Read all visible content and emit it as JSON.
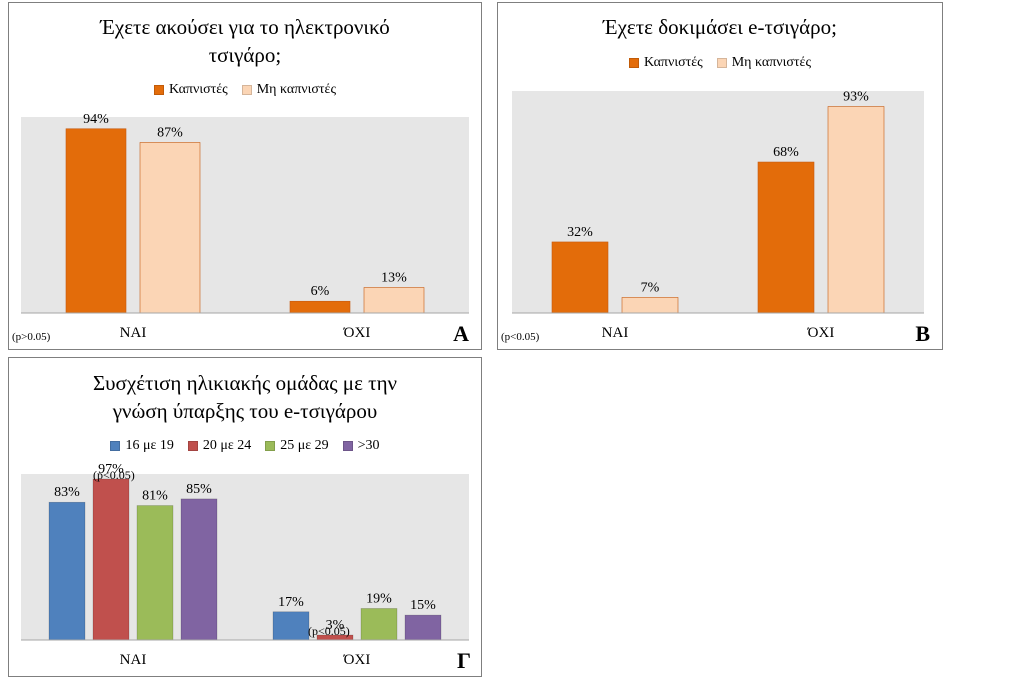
{
  "chart_data": [
    {
      "type": "bar",
      "id": "A",
      "title": "Έχετε ακούσει για το ηλεκτρονικό τσιγάρο;",
      "title_lines": [
        "Έχετε ακούσει για το ηλεκτρονικό",
        "τσιγάρο;"
      ],
      "categories": [
        "ΝΑΙ",
        "ΌΧΙ"
      ],
      "series": [
        {
          "name": "Καπνιστές",
          "color": "#e36c0a",
          "values": [
            94,
            6
          ],
          "labels": [
            "94%",
            "6%"
          ]
        },
        {
          "name": "Μη καπνιστές",
          "color": "#fbd5b5",
          "values": [
            87,
            13
          ],
          "labels": [
            "87%",
            "13%"
          ]
        }
      ],
      "ylim": [
        0,
        100
      ],
      "legend_position": "top",
      "plot_background": "#e6e6e6",
      "p_note": "(p>0.05)",
      "panel_label": "Α"
    },
    {
      "type": "bar",
      "id": "B",
      "title": "Έχετε δοκιμάσει e-τσιγάρο;",
      "title_lines": [
        "Έχετε δοκιμάσει e-τσιγάρο;"
      ],
      "categories": [
        "ΝΑΙ",
        "ΌΧΙ"
      ],
      "series": [
        {
          "name": "Καπνιστές",
          "color": "#e36c0a",
          "values": [
            32,
            68
          ],
          "labels": [
            "32%",
            "68%"
          ]
        },
        {
          "name": "Μη καπνιστές",
          "color": "#fbd5b5",
          "values": [
            7,
            93
          ],
          "labels": [
            "7%",
            "93%"
          ]
        }
      ],
      "ylim": [
        0,
        100
      ],
      "legend_position": "top",
      "plot_background": "#e6e6e6",
      "p_note": "(p<0.05)",
      "panel_label": "Β"
    },
    {
      "type": "bar",
      "id": "C",
      "title": "Συσχέτιση ηλικιακής ομάδας με την γνώση ύπαρξης του e-τσιγάρου",
      "title_lines": [
        "Συσχέτιση ηλικιακής ομάδας με την",
        "γνώση ύπαρξης του e-τσιγάρου"
      ],
      "categories": [
        "ΝΑΙ",
        "ΌΧΙ"
      ],
      "series": [
        {
          "name": "16 με 19",
          "color": "#4f81bd",
          "values": [
            83,
            17
          ],
          "labels": [
            "83%",
            "17%"
          ]
        },
        {
          "name": "20 με 24",
          "color": "#c0504d",
          "values": [
            97,
            3
          ],
          "labels": [
            "97%",
            "3%"
          ]
        },
        {
          "name": "25 με 29",
          "color": "#9bbb59",
          "values": [
            81,
            19
          ],
          "labels": [
            "81%",
            "19%"
          ]
        },
        {
          "name": ">30",
          "color": "#8064a2",
          "values": [
            85,
            15
          ],
          "labels": [
            "85%",
            "15%"
          ]
        }
      ],
      "ylim": [
        0,
        100
      ],
      "legend_position": "top",
      "plot_background": "#e6e6e6",
      "annotations": [
        "(p<0.05)",
        "(p<0.05)"
      ],
      "panel_label": "Γ"
    }
  ]
}
